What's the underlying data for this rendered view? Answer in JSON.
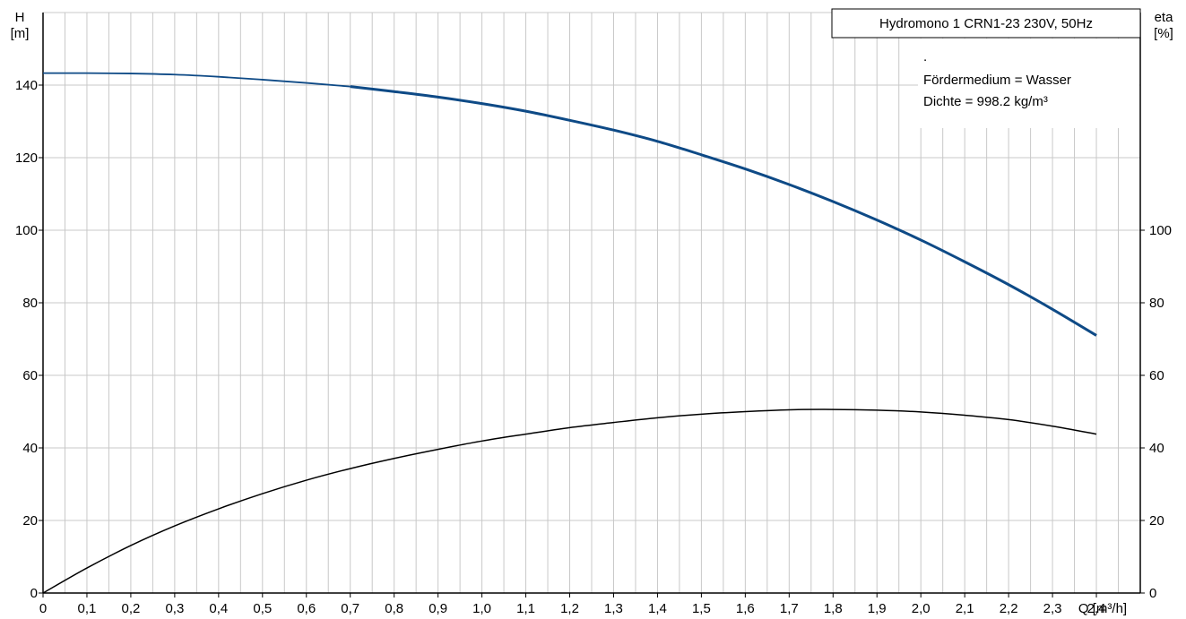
{
  "chart_data": {
    "type": "line",
    "title": "Hydromono 1 CRN1-23 230V, 50Hz",
    "info_lines": [
      ".",
      "Fördermedium = Wasser",
      "Dichte = 998.2 kg/m³"
    ],
    "xlabel": "Q [m³/h]",
    "ylabel_left": [
      "H",
      "[m]"
    ],
    "ylabel_right": [
      "eta",
      "[%]"
    ],
    "xlim": [
      0,
      2.5
    ],
    "ylim_left": [
      0,
      160
    ],
    "ylim_right": [
      0,
      160
    ],
    "x_ticks": [
      "0",
      "0,1",
      "0,2",
      "0,3",
      "0,4",
      "0,5",
      "0,6",
      "0,7",
      "0,8",
      "0,9",
      "1,0",
      "1,1",
      "1,2",
      "1,3",
      "1,4",
      "1,5",
      "1,6",
      "1,7",
      "1,8",
      "1,9",
      "2,0",
      "2,1",
      "2,2",
      "2,3",
      "2,4"
    ],
    "y_ticks_left": [
      0,
      20,
      40,
      60,
      80,
      100,
      120,
      140
    ],
    "y_ticks_right": [
      0,
      20,
      40,
      60,
      80,
      100
    ],
    "grid": true,
    "series": [
      {
        "name": "",
        "axis": "left",
        "color": "#0e4a86",
        "x": [
          0,
          0.1,
          0.2,
          0.3,
          0.4,
          0.5,
          0.6,
          0.7,
          0.8,
          0.9,
          1.0,
          1.1,
          1.2,
          1.3,
          1.4,
          1.5,
          1.6,
          1.7,
          1.8,
          1.9,
          2.0,
          2.1,
          2.2,
          2.3,
          2.4
        ],
        "y": [
          143.3,
          143.3,
          143.2,
          142.9,
          142.3,
          141.5,
          140.6,
          139.6,
          138.2,
          136.7,
          134.9,
          132.8,
          130.3,
          127.6,
          124.5,
          120.8,
          116.9,
          112.6,
          107.9,
          102.8,
          97.3,
          91.3,
          85.0,
          78.2,
          71.0
        ],
        "thin_until_x": 0.7
      },
      {
        "name": "",
        "axis": "right",
        "color": "#000000",
        "x": [
          0,
          0.1,
          0.2,
          0.3,
          0.4,
          0.5,
          0.6,
          0.7,
          0.8,
          0.9,
          1.0,
          1.1,
          1.2,
          1.3,
          1.4,
          1.5,
          1.6,
          1.7,
          1.8,
          1.9,
          2.0,
          2.1,
          2.2,
          2.3,
          2.4
        ],
        "y": [
          0,
          6.9,
          13.1,
          18.5,
          23.2,
          27.4,
          31.1,
          34.3,
          37.1,
          39.6,
          41.9,
          43.8,
          45.6,
          47.0,
          48.3,
          49.3,
          50.0,
          50.5,
          50.6,
          50.4,
          49.9,
          49.0,
          47.8,
          46.0,
          43.8
        ]
      }
    ]
  }
}
